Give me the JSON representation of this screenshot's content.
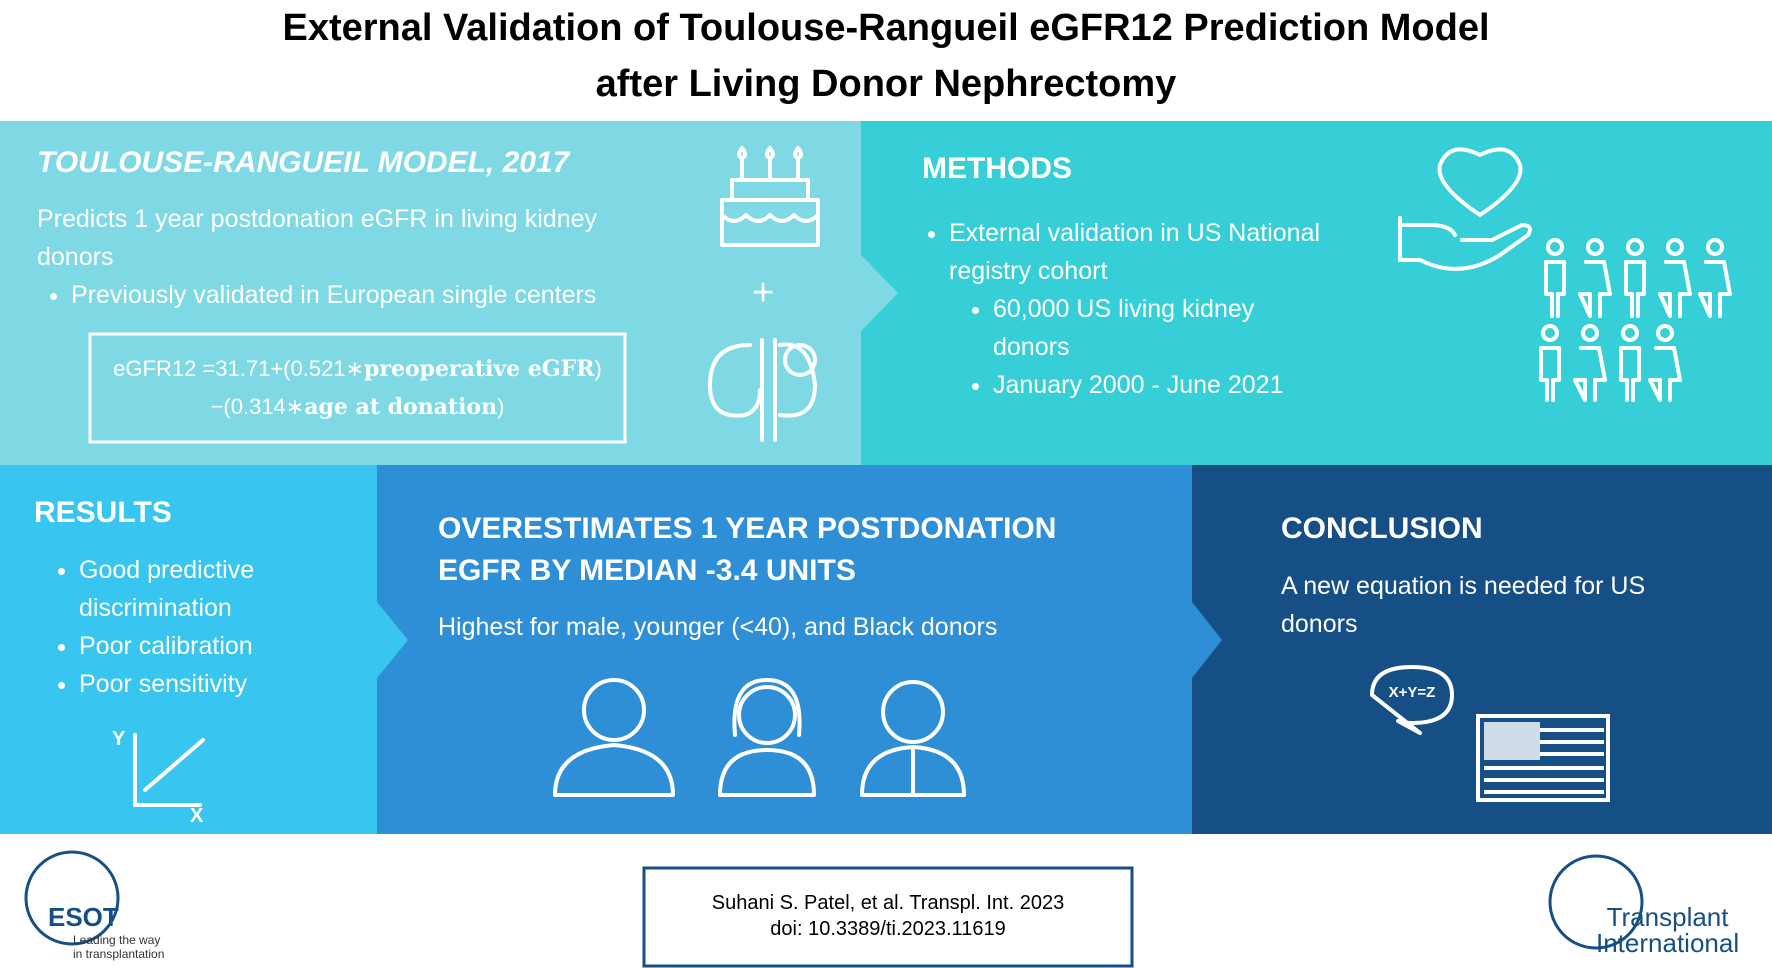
{
  "header": {
    "title_lines": [
      "External Validation of Toulouse-Rangueil eGFR12 Prediction Model",
      "after Living Donor Nephrectomy"
    ]
  },
  "model": {
    "heading": "TOULOUSE-RANGUEIL MODEL, 2017",
    "text": "Predicts 1 year postdonation eGFR in living kidney donors",
    "bullets": [
      "Previously validated in European single centers"
    ],
    "formula": [
      "eGFR12 =31.71+(0.521∗",
      "preoperative eGFR",
      ")−(0.314∗",
      "age at donation",
      ")"
    ],
    "icon_plus": "+"
  },
  "methods": {
    "heading": "METHODS",
    "bullet": "External validation in US National registry cohort",
    "sub_bullets": [
      "60,000 US living kidney donors",
      "January 2000 - June 2021"
    ]
  },
  "results": {
    "heading": "RESULTS",
    "bullets": [
      "Good predictive discrimination",
      "Poor calibration",
      "Poor sensitivity"
    ],
    "icon_axes": [
      "Y",
      "X"
    ]
  },
  "finding": {
    "heading": "OVERESTIMATES 1 YEAR POSTDONATION EGFR BY MEDIAN -3.4 UNITS",
    "text": "Highest for male, younger (<40), and Black donors"
  },
  "conclusion": {
    "heading": "CONCLUSION",
    "text": "A new equation is needed for US donors",
    "icon_equation": "X+Y=Z"
  },
  "footer": {
    "citation": [
      "Suhani S. Patel, et al. Transpl. Int. 2023",
      "doi: 10.3389/ti.2023.11619"
    ],
    "esot_logo": [
      "ESOT",
      "Leading the way",
      "in transplantation"
    ],
    "ti_logo": [
      "Transplant",
      "International"
    ]
  }
}
